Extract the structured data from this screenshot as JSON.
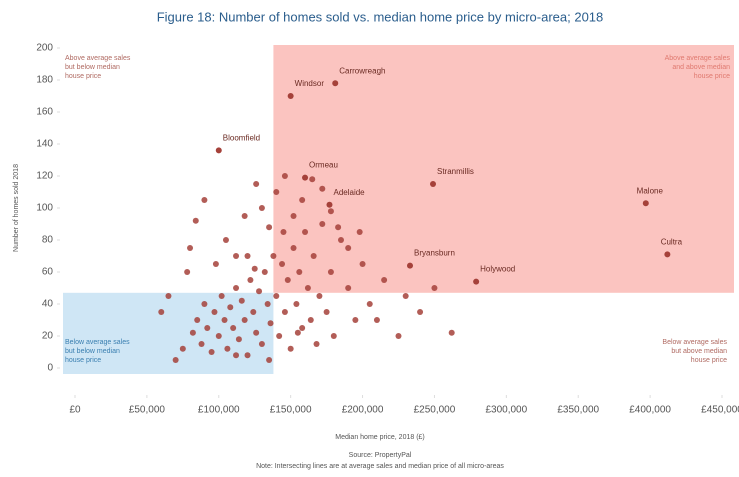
{
  "chart_data": {
    "type": "scatter",
    "title": "Figure 18: Number of homes sold vs. median home price by micro-area; 2018",
    "x_label": "Median home price, 2018 (£)",
    "y_label": "Number of homes sold 2018",
    "source": "Source: PropertyPal",
    "note": "Note: Intersecting lines are at average sales and median price of all micro-areas",
    "xlim": [
      0,
      450000
    ],
    "ylim": [
      0,
      200
    ],
    "xticks": [
      {
        "value": 0,
        "label": "£0"
      },
      {
        "value": 50000,
        "label": "£50,000"
      },
      {
        "value": 100000,
        "label": "£100,000"
      },
      {
        "value": 150000,
        "label": "£150,000"
      },
      {
        "value": 200000,
        "label": "£200,000"
      },
      {
        "value": 250000,
        "label": "£250,000"
      },
      {
        "value": 300000,
        "label": "£300,000"
      },
      {
        "value": 350000,
        "label": "£350,000"
      },
      {
        "value": 400000,
        "label": "£400,000"
      },
      {
        "value": 450000,
        "label": "£450,000"
      }
    ],
    "yticks": [
      0,
      20,
      40,
      60,
      80,
      100,
      120,
      140,
      160,
      180,
      200
    ],
    "average_sales": 47,
    "median_price": 138000,
    "high_region_color": "#fbc4c0",
    "low_region_color": "#cfe6f5",
    "annotations": [
      {
        "lines": [
          "Above average sales",
          "but below median",
          "house price"
        ],
        "corner": "top-left",
        "color": "#b06a62"
      },
      {
        "lines": [
          "Above average sales",
          "and above median",
          "house price"
        ],
        "corner": "top-right",
        "color": "#e07a70"
      },
      {
        "lines": [
          "Below average sales",
          "but below median",
          "house price"
        ],
        "corner": "bottom-left",
        "color": "#3a7fb0"
      },
      {
        "lines": [
          "Below average sales",
          "but above median",
          "house price"
        ],
        "corner": "bottom-right",
        "color": "#b06a62"
      }
    ],
    "points": {
      "color": "#a5413a",
      "x": [
        82000,
        85000,
        88000,
        90000,
        92000,
        95000,
        97000,
        100000,
        102000,
        104000,
        106000,
        108000,
        110000,
        112000,
        114000,
        116000,
        118000,
        120000,
        122000,
        124000,
        126000,
        128000,
        130000,
        132000,
        134000,
        136000,
        138000,
        140000,
        142000,
        144000,
        146000,
        148000,
        150000,
        152000,
        154000,
        156000,
        158000,
        160000,
        162000,
        164000,
        166000,
        168000,
        170000,
        172000,
        175000,
        178000,
        180000,
        185000,
        190000,
        195000,
        200000,
        205000,
        210000,
        215000,
        225000,
        230000,
        240000,
        250000,
        262000,
        78000,
        80000,
        84000,
        90000,
        98000,
        105000,
        112000,
        118000,
        126000,
        130000,
        135000,
        140000,
        146000,
        152000,
        158000,
        165000,
        172000,
        178000,
        183000,
        190000,
        198000,
        70000,
        75000,
        60000,
        65000,
        120000,
        125000,
        145000,
        155000,
        135000,
        112000
      ],
      "y": [
        22,
        30,
        15,
        40,
        25,
        10,
        35,
        20,
        45,
        30,
        12,
        38,
        25,
        50,
        18,
        42,
        30,
        8,
        55,
        35,
        22,
        48,
        15,
        60,
        40,
        28,
        70,
        45,
        20,
        65,
        35,
        55,
        12,
        75,
        40,
        60,
        25,
        85,
        50,
        30,
        70,
        15,
        45,
        90,
        35,
        60,
        20,
        80,
        50,
        30,
        65,
        40,
        30,
        55,
        20,
        45,
        35,
        50,
        22,
        60,
        75,
        92,
        105,
        65,
        80,
        70,
        95,
        115,
        100,
        88,
        110,
        120,
        95,
        105,
        118,
        112,
        98,
        88,
        75,
        85,
        5,
        12,
        35,
        45,
        70,
        62,
        85,
        22,
        5,
        8
      ]
    },
    "labeled_points": [
      {
        "name": "Carrowreagh",
        "x": 181000,
        "y": 178
      },
      {
        "name": "Windsor",
        "x": 150000,
        "y": 170
      },
      {
        "name": "Bloomfield",
        "x": 100000,
        "y": 136
      },
      {
        "name": "Ormeau",
        "x": 160000,
        "y": 119
      },
      {
        "name": "Adelaide",
        "x": 177000,
        "y": 102
      },
      {
        "name": "Stranmillis",
        "x": 249000,
        "y": 115
      },
      {
        "name": "Malone",
        "x": 397000,
        "y": 103
      },
      {
        "name": "Cultra",
        "x": 412000,
        "y": 71
      },
      {
        "name": "Bryansburn",
        "x": 233000,
        "y": 64
      },
      {
        "name": "Holywood",
        "x": 279000,
        "y": 54
      }
    ]
  }
}
